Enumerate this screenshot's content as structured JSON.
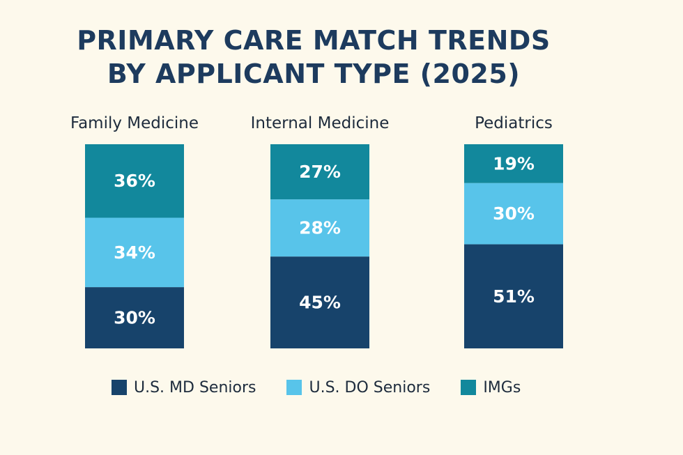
{
  "chart_data": {
    "type": "bar",
    "stacked": true,
    "title_lines": [
      "PRIMARY CARE MATCH TRENDS",
      "BY APPLICANT TYPE (2025)"
    ],
    "categories": [
      "Family Medicine",
      "Internal Medicine",
      "Pediatrics"
    ],
    "series": [
      {
        "name": "U.S. MD Seniors",
        "color": "#17436b",
        "values": [
          30,
          45,
          51
        ]
      },
      {
        "name": "U.S. DO Seniors",
        "color": "#58c4ea",
        "values": [
          34,
          28,
          30
        ]
      },
      {
        "name": "IMGs",
        "color": "#12889c",
        "values": [
          36,
          27,
          19
        ]
      }
    ],
    "value_suffix": "%",
    "ylim": [
      0,
      100
    ],
    "legend_position": "bottom"
  },
  "colors": {
    "background": "#fdf9ec",
    "title": "#1d3b5e"
  }
}
